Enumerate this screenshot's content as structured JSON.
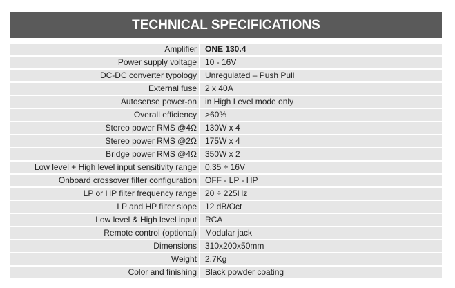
{
  "header": {
    "title": "TECHNICAL SPECIFICATIONS"
  },
  "table": {
    "rows": [
      [
        "Amplifier",
        "ONE 130.4"
      ],
      [
        "Power supply voltage",
        "10 - 16V"
      ],
      [
        "DC-DC converter typology",
        "Unregulated – Push Pull"
      ],
      [
        "External fuse",
        "2 x 40A"
      ],
      [
        "Autosense power-on",
        "in High Level mode only"
      ],
      [
        "Overall efficiency",
        ">60%"
      ],
      [
        "Stereo power RMS @4Ω",
        "130W x 4"
      ],
      [
        "Stereo power RMS @2Ω",
        "175W x 4"
      ],
      [
        "Bridge power RMS @4Ω",
        "350W x 2"
      ],
      [
        "Low level + High level input sensitivity range",
        "0.35 ÷ 16V"
      ],
      [
        "Onboard crossover filter configuration",
        "OFF - LP - HP"
      ],
      [
        "LP or HP filter frequency range",
        "20 ÷ 225Hz"
      ],
      [
        "LP and HP filter slope",
        "12 dB/Oct"
      ],
      [
        "Low level & High level input",
        "RCA"
      ],
      [
        "Remote control (optional)",
        "Modular jack"
      ],
      [
        "Dimensions",
        "310x200x50mm"
      ],
      [
        "Weight",
        "2.7Kg"
      ],
      [
        "Color and finishing",
        "Black powder coating"
      ]
    ]
  }
}
